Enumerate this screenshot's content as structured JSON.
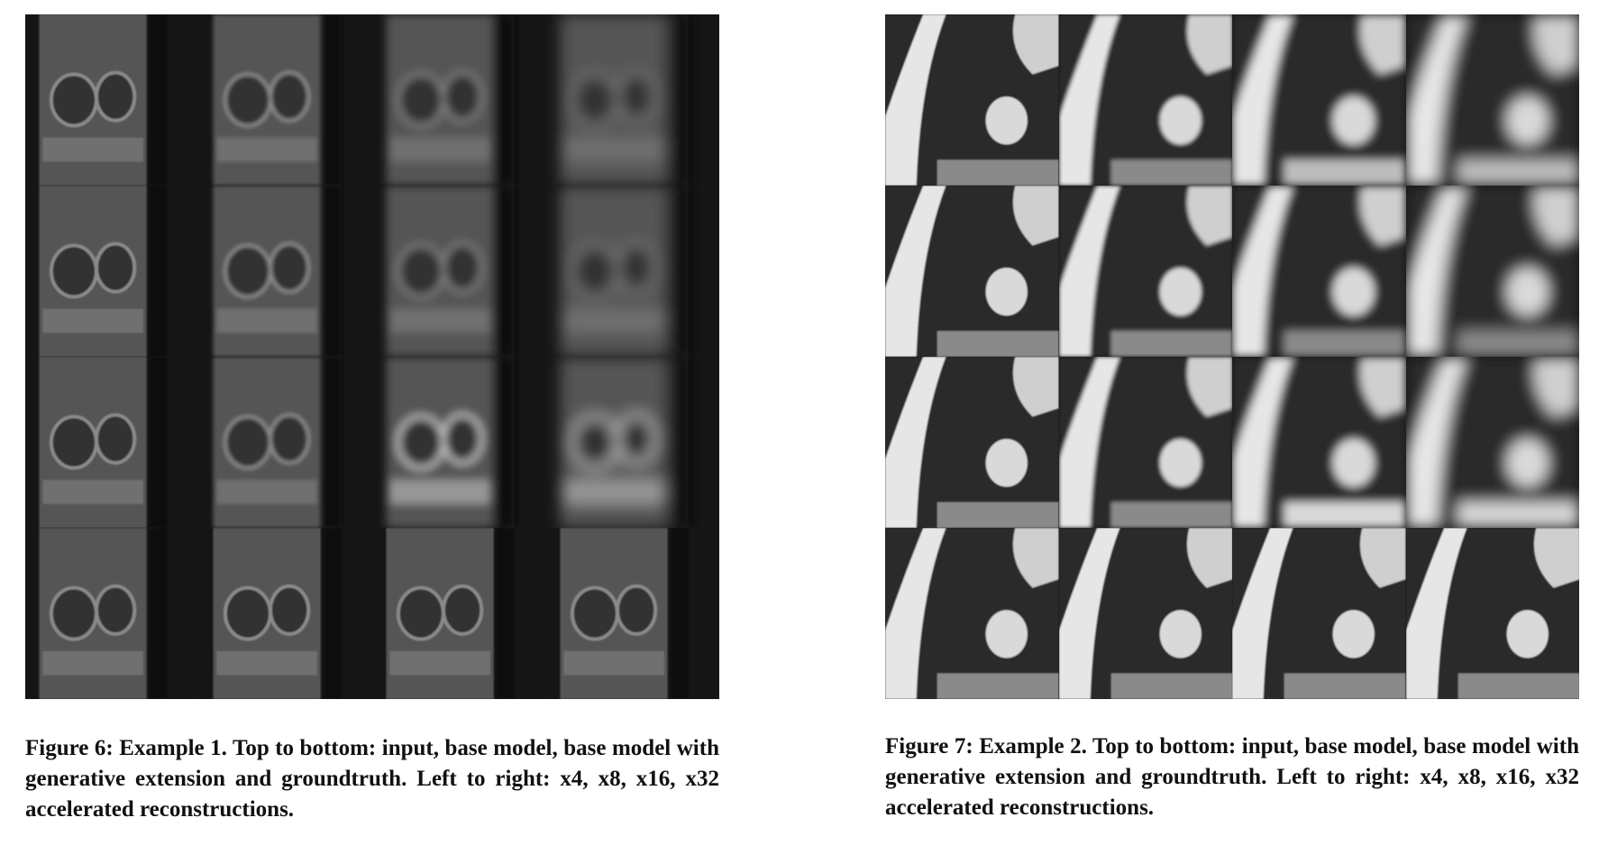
{
  "figures": [
    {
      "id": "fig6",
      "caption": "Figure 6: Example 1. Top to bottom: input, base model, base model with generative extension and groundtruth. Left to right: x4, x8, x16, x32 accelerated reconstructions.",
      "rows": [
        "input",
        "base model",
        "base model with generative extension",
        "groundtruth"
      ],
      "columns": [
        "x4",
        "x8",
        "x16",
        "x32"
      ]
    },
    {
      "id": "fig7",
      "caption": "Figure 7: Example 2. Top to bottom: input, base model, base model with generative extension and groundtruth. Left to right: x4, x8, x16, x32 accelerated reconstructions.",
      "rows": [
        "input",
        "base model",
        "base model with generative extension",
        "groundtruth"
      ],
      "columns": [
        "x4",
        "x8",
        "x16",
        "x32"
      ]
    }
  ],
  "colors": {
    "background": "#ffffff",
    "tile_dark": "#1b1b1b",
    "text": "#111111"
  }
}
